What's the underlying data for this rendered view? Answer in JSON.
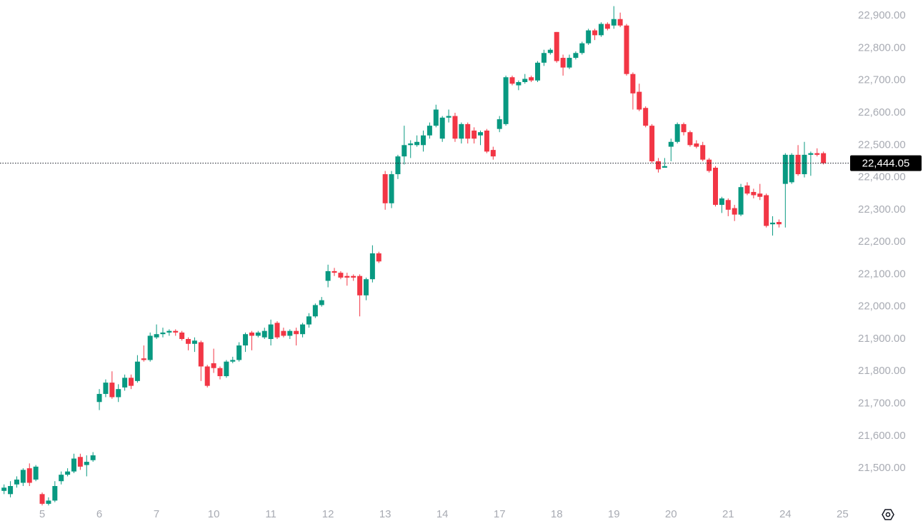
{
  "chart_data": {
    "type": "candlestick",
    "up_color": "#089981",
    "down_color": "#f23645",
    "xlim": [
      -0.64,
      133.2
    ],
    "xticks": [
      {
        "value": 6,
        "label": "5"
      },
      {
        "value": 15,
        "label": "6"
      },
      {
        "value": 24,
        "label": "7"
      },
      {
        "value": 33,
        "label": "10"
      },
      {
        "value": 42,
        "label": "11"
      },
      {
        "value": 51,
        "label": "12"
      },
      {
        "value": 60,
        "label": "13"
      },
      {
        "value": 69,
        "label": "14"
      },
      {
        "value": 78,
        "label": "17"
      },
      {
        "value": 87,
        "label": "18"
      },
      {
        "value": 96,
        "label": "19"
      },
      {
        "value": 105,
        "label": "20"
      },
      {
        "value": 114,
        "label": "21"
      },
      {
        "value": 123,
        "label": "24"
      },
      {
        "value": 132,
        "label": "25"
      }
    ],
    "ylim": [
      21392,
      22949
    ],
    "yticks": [
      {
        "value": 21500,
        "label": "21,500.00"
      },
      {
        "value": 21600,
        "label": "21,600.00"
      },
      {
        "value": 21700,
        "label": "21,700.00"
      },
      {
        "value": 21800,
        "label": "21,800.00"
      },
      {
        "value": 21900,
        "label": "21,900.00"
      },
      {
        "value": 22000,
        "label": "22,000.00"
      },
      {
        "value": 22100,
        "label": "22,100.00"
      },
      {
        "value": 22200,
        "label": "22,200.00"
      },
      {
        "value": 22300,
        "label": "22,300.00"
      },
      {
        "value": 22400,
        "label": "22,400.00"
      },
      {
        "value": 22500,
        "label": "22,500.00"
      },
      {
        "value": 22600,
        "label": "22,600.00"
      },
      {
        "value": 22700,
        "label": "22,700.00"
      },
      {
        "value": 22800,
        "label": "22,800.00"
      },
      {
        "value": 22900,
        "label": "22,900.00"
      }
    ],
    "last_price": {
      "value": 22444.05,
      "label": "22,444.05"
    },
    "open": [
      21430,
      21420,
      21450,
      21455,
      21500,
      21465,
      21420,
      21390,
      21400,
      21460,
      21480,
      21490,
      21535,
      21510,
      21525,
      21705,
      21730,
      21765,
      21720,
      21750,
      21780,
      21770,
      21840,
      21835,
      21905,
      21915,
      21920,
      21925,
      21920,
      21900,
      21885,
      21890,
      21815,
      21825,
      21810,
      21785,
      21830,
      21835,
      21880,
      21920,
      21910,
      21905,
      21900,
      21950,
      21925,
      21910,
      21925,
      21915,
      21945,
      21970,
      22005,
      22080,
      22110,
      22105,
      22095,
      22095,
      22095,
      22035,
      22085,
      22165,
      22410,
      22320,
      22410,
      22465,
      22500,
      22500,
      22500,
      22530,
      22560,
      22520,
      22585,
      22590,
      22520,
      22565,
      22545,
      22530,
      22545,
      22485,
      22550,
      22565,
      22710,
      22685,
      22695,
      22710,
      22700,
      22755,
      22785,
      22850,
      22770,
      22740,
      22770,
      22785,
      22815,
      22855,
      22840,
      22875,
      22870,
      22890,
      22870,
      22720,
      22665,
      22615,
      22560,
      22450,
      22430,
      22495,
      22510,
      22565,
      22540,
      22505,
      22500,
      22455,
      22430,
      22315,
      22330,
      22305,
      22285,
      22375,
      22355,
      22350,
      22345,
      22255,
      22262,
      22380,
      22385,
      22470,
      22410,
      22470,
      22475,
      22475
    ],
    "high": [
      21450,
      21460,
      21475,
      21500,
      21515,
      21510,
      21425,
      21410,
      21460,
      21490,
      21500,
      21545,
      21545,
      21540,
      21550,
      21745,
      21775,
      21800,
      21760,
      21790,
      21790,
      21850,
      21880,
      21920,
      21945,
      21935,
      21930,
      21930,
      21925,
      21905,
      21905,
      21895,
      21820,
      21870,
      21815,
      21835,
      21845,
      21890,
      21920,
      21925,
      21925,
      21935,
      21960,
      21955,
      21935,
      21930,
      21935,
      21950,
      21980,
      22010,
      22030,
      22130,
      22120,
      22110,
      22105,
      22100,
      22100,
      22090,
      22190,
      22170,
      22420,
      22420,
      22470,
      22560,
      22515,
      22530,
      22545,
      22570,
      22625,
      22590,
      22610,
      22600,
      22570,
      22570,
      22555,
      22545,
      22550,
      22495,
      22590,
      22715,
      22715,
      22700,
      22720,
      22715,
      22760,
      22795,
      22800,
      22850,
      22780,
      22780,
      22790,
      22820,
      22860,
      22860,
      22880,
      22880,
      22930,
      22910,
      22875,
      22725,
      22690,
      22620,
      22565,
      22460,
      22460,
      22520,
      22570,
      22570,
      22545,
      22515,
      22510,
      22460,
      22435,
      22340,
      22335,
      22315,
      22380,
      22385,
      22365,
      22380,
      22350,
      22280,
      22270,
      22475,
      22475,
      22500,
      22510,
      22480,
      22490,
      22480
    ],
    "low": [
      21420,
      21410,
      21440,
      21445,
      21445,
      21460,
      21385,
      21385,
      21395,
      21450,
      21475,
      21485,
      21495,
      21475,
      21520,
      21680,
      21720,
      21715,
      21705,
      21740,
      21745,
      21765,
      21830,
      21830,
      21900,
      21905,
      21910,
      21910,
      21895,
      21865,
      21860,
      21770,
      21750,
      21795,
      21775,
      21780,
      21825,
      21830,
      21860,
      21865,
      21905,
      21900,
      21880,
      21900,
      21905,
      21900,
      21880,
      21905,
      21935,
      21965,
      22000,
      22060,
      22095,
      22085,
      22065,
      22080,
      21970,
      22020,
      22075,
      22135,
      22300,
      22305,
      22395,
      22440,
      22460,
      22495,
      22480,
      22520,
      22555,
      22510,
      22570,
      22510,
      22505,
      22505,
      22505,
      22500,
      22475,
      22455,
      22540,
      22560,
      22685,
      22670,
      22690,
      22695,
      22695,
      22745,
      22780,
      22755,
      22715,
      22735,
      22765,
      22780,
      22810,
      22825,
      22835,
      22855,
      22860,
      22865,
      22715,
      22610,
      22605,
      22555,
      22445,
      22415,
      22430,
      22450,
      22505,
      22530,
      22495,
      22490,
      22450,
      22415,
      22310,
      22290,
      22280,
      22265,
      22280,
      22345,
      22335,
      22330,
      22245,
      22220,
      22245,
      22245,
      22380,
      22405,
      22400,
      22405,
      22465,
      22440
    ],
    "close": [
      21440,
      21445,
      21465,
      21495,
      21455,
      21505,
      21390,
      21400,
      21445,
      21480,
      21490,
      21530,
      21505,
      21520,
      21540,
      21730,
      21765,
      21720,
      21745,
      21780,
      21755,
      21830,
      21835,
      21910,
      21915,
      21920,
      21925,
      21920,
      21900,
      21885,
      21895,
      21815,
      21755,
      21810,
      21785,
      21830,
      21835,
      21880,
      21915,
      21910,
      21920,
      21925,
      21945,
      21905,
      21910,
      21925,
      21915,
      21945,
      21970,
      22005,
      22020,
      22110,
      22105,
      22090,
      22090,
      22090,
      22035,
      22085,
      22165,
      22140,
      22320,
      22410,
      22465,
      22500,
      22505,
      22510,
      22530,
      22560,
      22610,
      22585,
      22590,
      22520,
      22565,
      22520,
      22520,
      22540,
      22480,
      22465,
      22580,
      22710,
      22690,
      22695,
      22705,
      22700,
      22755,
      22785,
      22795,
      22760,
      22740,
      22770,
      22785,
      22815,
      22855,
      22840,
      22875,
      22860,
      22890,
      22870,
      22720,
      22660,
      22610,
      22560,
      22450,
      22425,
      22435,
      22510,
      22565,
      22540,
      22500,
      22495,
      22455,
      22420,
      22315,
      22335,
      22300,
      22285,
      22370,
      22350,
      22345,
      22340,
      22250,
      22260,
      22255,
      22470,
      22470,
      22410,
      22470,
      22475,
      22470,
      22444.05
    ]
  }
}
